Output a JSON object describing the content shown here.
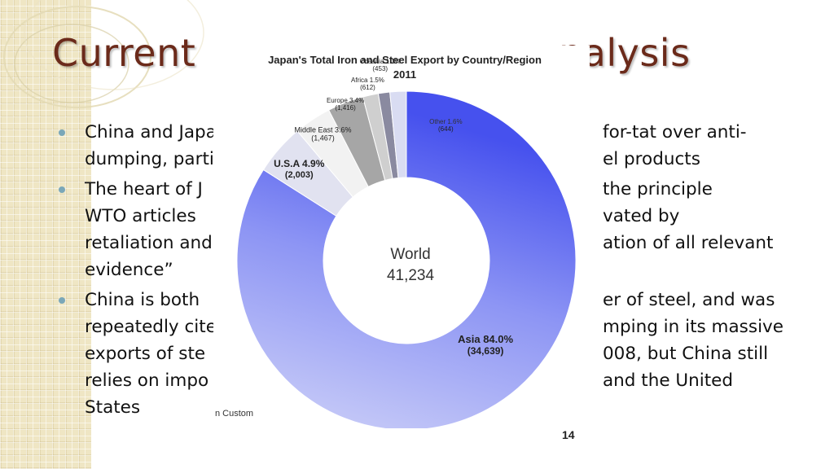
{
  "slide": {
    "title_part1": "Current",
    "title_part2": "nalysis",
    "bullets": [
      [
        "China and Japa",
        "for-tat over anti-"
      ],
      [
        "dumping, parti",
        "el products"
      ],
      [
        "The heart of J",
        "the principle"
      ],
      [
        "WTO articles",
        "vated by"
      ],
      [
        "retaliation and",
        "ation of all relevant"
      ],
      [
        "evidence”",
        ""
      ],
      [
        "China is both",
        "er of steel, and was"
      ],
      [
        "repeatedly cite",
        "mping in its massive"
      ],
      [
        "exports of ste",
        "008, but China still"
      ],
      [
        "relies on impo",
        "and the United"
      ],
      [
        "States",
        ""
      ]
    ]
  },
  "colors": {
    "title": "#6b2a1a",
    "bullet_dot": "#7aa7b8",
    "asia_light": "#c9cdf7",
    "asia_dark": "#4a55ee",
    "usa": "#e1e2f0",
    "middle_east": "#f2f2f2",
    "europe": "#a6a6a6",
    "africa": "#cfcfcf",
    "oceania": "#8a8aa0",
    "other": "#d9dcf2"
  },
  "chart_data": {
    "type": "pie",
    "title": "Japan's Total Iron and Steel Export by Country/Region",
    "subtitle": "2011",
    "center_label": "World",
    "center_value": "41,234",
    "total": 41234,
    "slices": [
      {
        "name": "Asia",
        "percent_label": "84.0%",
        "value": 34639,
        "value_label": "(34,639)",
        "color": "#6a73f2"
      },
      {
        "name": "U.S.A",
        "percent_label": "4.9%",
        "value": 2003,
        "value_label": "(2,003)",
        "color": "#e1e2f0"
      },
      {
        "name": "Middle East",
        "percent_label": "3.6%",
        "value": 1467,
        "value_label": "(1,467)",
        "color": "#f2f2f2"
      },
      {
        "name": "Europe",
        "percent_label": "3.4%",
        "value": 1416,
        "value_label": "(1,416)",
        "color": "#a6a6a6"
      },
      {
        "name": "Africa",
        "percent_label": "1.5%",
        "value": 612,
        "value_label": "(612)",
        "color": "#cfcfcf"
      },
      {
        "name": "Oceania",
        "percent_label": "1.1%",
        "value": 453,
        "value_label": "(453)",
        "color": "#8a8aa0"
      },
      {
        "name": "Other",
        "percent_label": "1.6%",
        "value": 644,
        "value_label": "(644)",
        "color": "#d9dcf2"
      }
    ]
  },
  "source_note": "n Custom",
  "page_number": "14"
}
